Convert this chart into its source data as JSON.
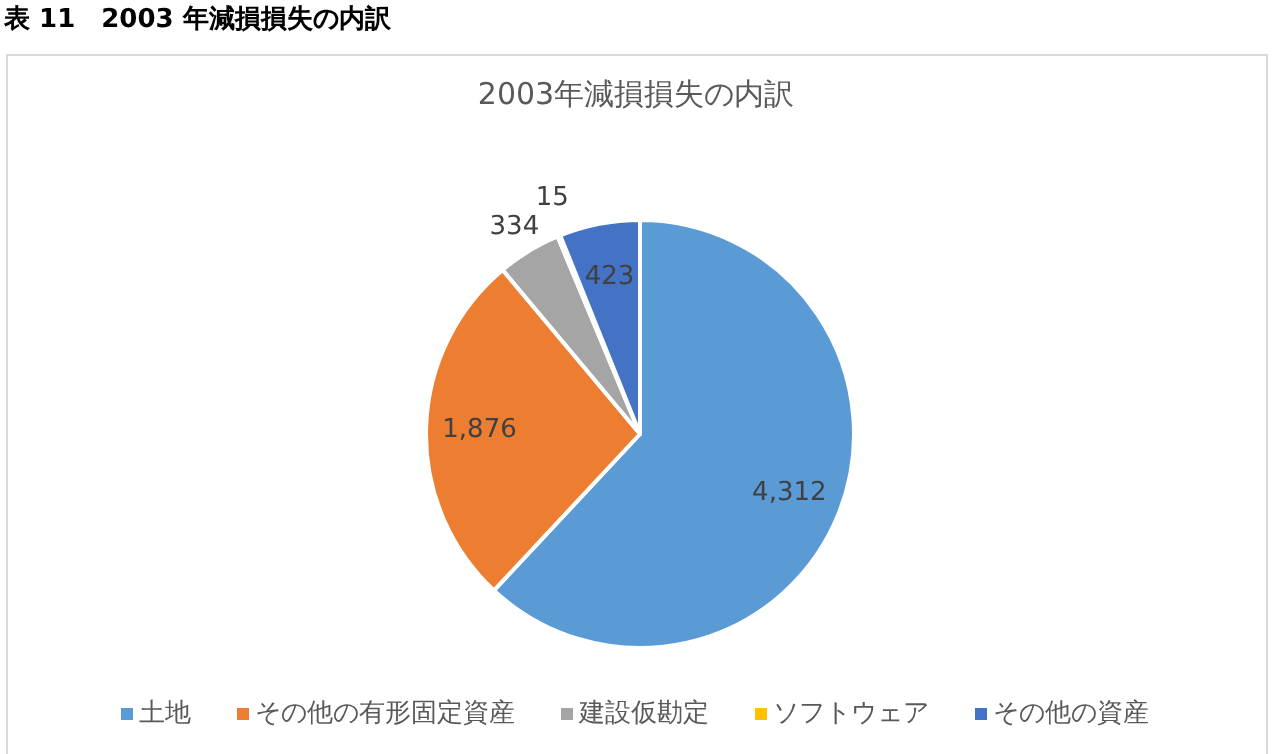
{
  "chart_data": {
    "type": "pie",
    "title": "2003年減損損失の内訳",
    "annotations": [
      "表 11　2003 年減損損失の内訳"
    ],
    "categories": [
      "土地",
      "その他の有形固定資産",
      "建設仮勘定",
      "ソフトウェア",
      "その他の資産"
    ],
    "values": [
      4312,
      1876,
      334,
      15,
      423
    ],
    "colors": [
      "#5b9bd5",
      "#ed7d31",
      "#a5a5a5",
      "#ffc000",
      "#4472c4"
    ],
    "value_labels": [
      "4,312",
      "1,876",
      "334",
      "15",
      "423"
    ],
    "legend": "bottom"
  }
}
